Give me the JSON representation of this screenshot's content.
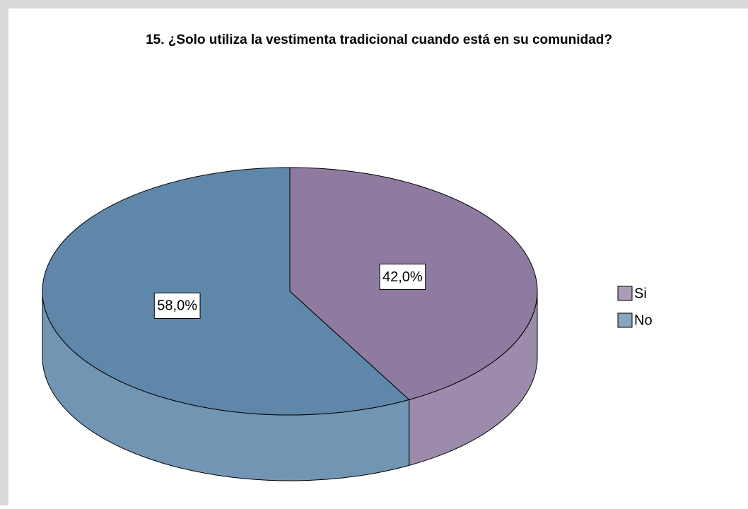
{
  "chart_data": {
    "type": "pie3d",
    "title": "15. ¿Solo utiliza la vestimenta tradicional cuando está en su comunidad?",
    "categories": [
      "Si",
      "No"
    ],
    "values": [
      42,
      58
    ],
    "value_labels": [
      "42,0%",
      "58,0%"
    ],
    "colors": [
      "#907ba0",
      "#5f87aa"
    ],
    "legend": "right"
  }
}
